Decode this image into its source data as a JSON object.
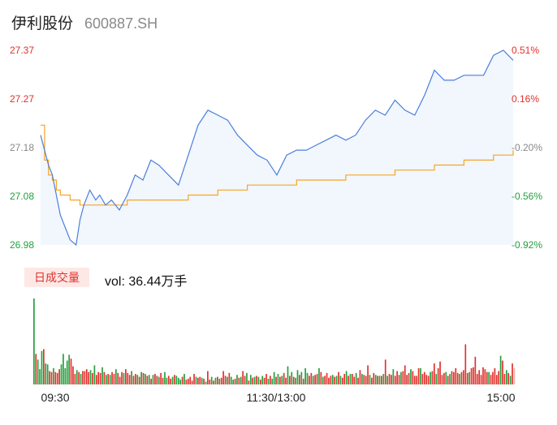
{
  "header": {
    "name": "伊利股份",
    "code": "600887.SH"
  },
  "colors": {
    "price_line": "#4a7fdc",
    "avg_line": "#f5a623",
    "up": "#e0312c",
    "down": "#23a03c",
    "neutral": "#888888"
  },
  "volume_panel": {
    "tab_label": "日成交量",
    "summary": "vol: 36.44万手"
  },
  "chart_data": [
    {
      "type": "line",
      "title": "",
      "price_ticks": [
        "27.37",
        "27.27",
        "27.18",
        "27.08",
        "26.98"
      ],
      "pct_ticks": [
        "0.51%",
        "0.16%",
        "-0.20%",
        "-0.56%",
        "-0.92%"
      ],
      "time_ticks": [
        "09:30",
        "11:30/13:00",
        "15:00"
      ],
      "ylim": [
        26.98,
        27.37
      ],
      "x": [
        0,
        2,
        4,
        6,
        8,
        10,
        12,
        15,
        18,
        20,
        22,
        25,
        28,
        30,
        33,
        36,
        40,
        44,
        48,
        52,
        56,
        60,
        65,
        70,
        75,
        80,
        85,
        90,
        95,
        100,
        105,
        110,
        115,
        120,
        125,
        130,
        135,
        140,
        145,
        150,
        155,
        160,
        165,
        170,
        175,
        180,
        185,
        190,
        195,
        200,
        205,
        210,
        215,
        220,
        225,
        230,
        235,
        240
      ],
      "series": [
        {
          "values": [
            27.2,
            27.17,
            27.14,
            27.12,
            27.08,
            27.04,
            27.02,
            26.99,
            26.98,
            27.03,
            27.06,
            27.09,
            27.07,
            27.08,
            27.06,
            27.07,
            27.05,
            27.08,
            27.12,
            27.11,
            27.15,
            27.14,
            27.12,
            27.1,
            27.16,
            27.22,
            27.25,
            27.24,
            27.23,
            27.2,
            27.18,
            27.16,
            27.15,
            27.12,
            27.16,
            27.17,
            27.17,
            27.18,
            27.19,
            27.2,
            27.19,
            27.2,
            27.23,
            27.25,
            27.24,
            27.27,
            27.25,
            27.24,
            27.28,
            27.33,
            27.31,
            27.31,
            27.32,
            27.32,
            27.32,
            27.36,
            27.37,
            27.35
          ]
        },
        {
          "values": [
            27.22,
            27.15,
            27.12,
            27.11,
            27.09,
            27.08,
            27.08,
            27.07,
            27.07,
            27.06,
            27.06,
            27.06,
            27.06,
            27.06,
            27.06,
            27.06,
            27.06,
            27.07,
            27.07,
            27.07,
            27.07,
            27.07,
            27.07,
            27.07,
            27.08,
            27.08,
            27.08,
            27.09,
            27.09,
            27.09,
            27.1,
            27.1,
            27.1,
            27.1,
            27.1,
            27.11,
            27.11,
            27.11,
            27.11,
            27.11,
            27.12,
            27.12,
            27.12,
            27.12,
            27.12,
            27.13,
            27.13,
            27.13,
            27.13,
            27.14,
            27.14,
            27.14,
            27.15,
            27.15,
            27.15,
            27.16,
            27.16,
            27.17
          ]
        }
      ]
    },
    {
      "type": "bar",
      "title": "",
      "values": [
        90,
        32,
        26,
        16,
        35,
        37,
        22,
        21,
        14,
        13,
        17,
        13,
        12,
        16,
        21,
        32,
        17,
        25,
        31,
        27,
        19,
        11,
        15,
        13,
        11,
        14,
        14,
        16,
        13,
        15,
        12,
        20,
        10,
        13,
        12,
        18,
        13,
        10,
        11,
        10,
        13,
        11,
        16,
        12,
        8,
        13,
        12,
        16,
        12,
        10,
        14,
        9,
        11,
        10,
        8,
        13,
        12,
        11,
        9,
        10,
        6,
        10,
        11,
        9,
        8,
        12,
        7,
        13,
        7,
        9,
        6,
        8,
        10,
        9,
        7,
        5,
        8,
        11,
        5,
        6,
        8,
        4,
        11,
        8,
        7,
        8,
        7,
        6,
        3,
        14,
        5,
        8,
        4,
        7,
        8,
        6,
        7,
        14,
        9,
        8,
        12,
        8,
        5,
        6,
        10,
        7,
        8,
        14,
        9,
        12,
        4,
        10,
        7,
        8,
        9,
        8,
        5,
        9,
        7,
        11,
        6,
        9,
        6,
        13,
        8,
        11,
        8,
        9,
        12,
        7,
        19,
        9,
        13,
        8,
        7,
        15,
        10,
        13,
        6,
        17,
        12,
        9,
        12,
        9,
        10,
        11,
        17,
        13,
        8,
        9,
        12,
        7,
        9,
        10,
        8,
        9,
        13,
        9,
        7,
        11,
        14,
        9,
        11,
        11,
        8,
        12,
        7,
        15,
        11,
        10,
        9,
        20,
        10,
        7,
        12,
        10,
        9,
        9,
        9,
        11,
        26,
        9,
        11,
        10,
        16,
        9,
        14,
        10,
        13,
        14,
        20,
        10,
        12,
        16,
        14,
        9,
        9,
        17,
        17,
        11,
        13,
        10,
        9,
        13,
        14,
        22,
        11,
        17,
        24,
        10,
        12,
        13,
        9,
        11,
        14,
        13,
        17,
        12,
        11,
        13,
        15,
        42,
        12,
        13,
        17,
        18,
        29,
        11,
        15,
        10,
        18,
        16,
        13,
        13,
        10,
        13,
        17,
        10,
        14,
        30,
        25,
        11,
        15,
        12,
        9,
        22,
        17
      ],
      "colors": [
        "G",
        "R",
        "G",
        "G",
        "G",
        "R",
        "G",
        "G",
        "R",
        "R",
        "G",
        "R",
        "R",
        "R",
        "G",
        "G",
        "G",
        "G",
        "G",
        "R",
        "R",
        "R",
        "G",
        "R",
        "G",
        "R",
        "R",
        "R",
        "R",
        "G",
        "R",
        "G",
        "R",
        "R",
        "R",
        "G",
        "R",
        "G",
        "R",
        "G",
        "R",
        "R",
        "G",
        "R",
        "R",
        "R",
        "G",
        "R",
        "R",
        "R",
        "G",
        "R",
        "R",
        "G",
        "R",
        "G",
        "R",
        "G",
        "R",
        "G",
        "R",
        "G",
        "R",
        "R",
        "G",
        "R",
        "R",
        "G",
        "G",
        "R",
        "R",
        "G",
        "R",
        "G",
        "G",
        "G",
        "R",
        "G",
        "R",
        "R",
        "R",
        "R",
        "R",
        "G",
        "R",
        "R",
        "G",
        "R",
        "G",
        "R",
        "R",
        "G",
        "R",
        "G",
        "R",
        "G",
        "R",
        "R",
        "R",
        "G",
        "R",
        "G",
        "G",
        "R",
        "G",
        "R",
        "G",
        "R",
        "R",
        "G",
        "R",
        "G",
        "R",
        "G",
        "R",
        "G",
        "R",
        "G",
        "R",
        "R",
        "G",
        "R",
        "G",
        "G",
        "R",
        "G",
        "R",
        "G",
        "R",
        "R",
        "G",
        "R",
        "G",
        "R",
        "G",
        "G",
        "R",
        "G",
        "R",
        "G",
        "G",
        "R",
        "R",
        "G",
        "R",
        "R",
        "G",
        "R",
        "G",
        "R",
        "R",
        "R",
        "R",
        "G",
        "R",
        "G",
        "R",
        "G",
        "R",
        "R",
        "G",
        "R",
        "G",
        "R",
        "R",
        "G",
        "R",
        "R",
        "G",
        "R",
        "R",
        "R",
        "G",
        "R",
        "R",
        "G",
        "R",
        "G",
        "R",
        "G",
        "R",
        "G",
        "R",
        "R",
        "G",
        "R",
        "R",
        "R",
        "G",
        "R",
        "R",
        "R",
        "R",
        "G",
        "R",
        "R",
        "R",
        "R",
        "G",
        "R",
        "R",
        "R",
        "R",
        "G",
        "R",
        "R",
        "G",
        "R",
        "R",
        "R",
        "R",
        "G",
        "R",
        "G",
        "R",
        "R",
        "R",
        "R",
        "G",
        "R",
        "R",
        "R",
        "R",
        "G",
        "R",
        "R",
        "R",
        "R",
        "R",
        "R",
        "R",
        "R",
        "R",
        "G",
        "R",
        "R",
        "R",
        "R",
        "R",
        "G",
        "R",
        "R",
        "G",
        "R",
        "G"
      ],
      "last_bar_faded": true
    }
  ]
}
